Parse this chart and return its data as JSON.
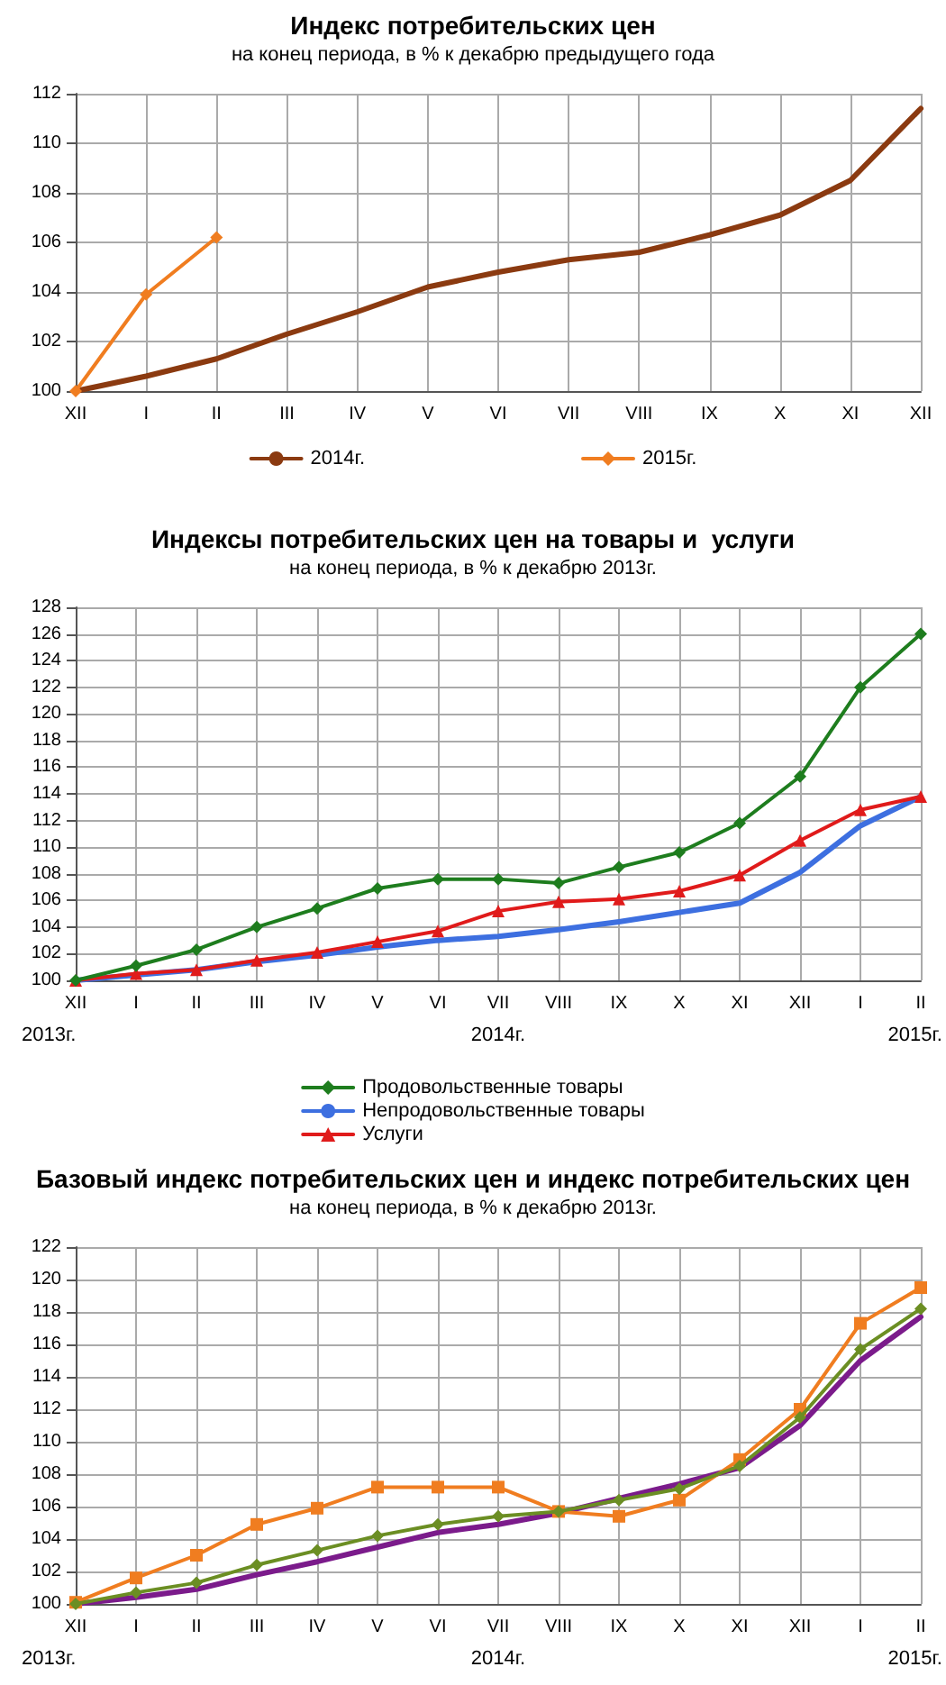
{
  "chart_data": [
    {
      "type": "line",
      "title": "Индекс потребительских цен",
      "subtitle": "на конец периода, в % к декабрю предыдущего года",
      "categories": [
        "XII",
        "I",
        "II",
        "III",
        "IV",
        "V",
        "VI",
        "VII",
        "VIII",
        "IX",
        "X",
        "XI",
        "XII"
      ],
      "series": [
        {
          "name": "2014г.",
          "color": "#8b3a10",
          "marker": "none",
          "values": [
            100,
            100.6,
            101.3,
            102.3,
            103.2,
            104.2,
            104.8,
            105.3,
            105.6,
            106.3,
            107.1,
            108.5,
            111.4
          ]
        },
        {
          "name": "2015г.",
          "color": "#f07d20",
          "marker": "diamond",
          "values": [
            100,
            103.9,
            106.2,
            null,
            null,
            null,
            null,
            null,
            null,
            null,
            null,
            null,
            null
          ]
        }
      ],
      "ylim": [
        100,
        112
      ],
      "yticks": [
        100,
        102,
        104,
        106,
        108,
        110,
        112
      ],
      "grid": true,
      "legend": "bottom"
    },
    {
      "type": "line",
      "title": "Индексы потребительских цен на товары и  услуги",
      "subtitle": "на конец периода, в % к декабрю 2013г.",
      "categories": [
        "XII",
        "I",
        "II",
        "III",
        "IV",
        "V",
        "VI",
        "VII",
        "VIII",
        "IX",
        "X",
        "XI",
        "XII",
        "I",
        "II"
      ],
      "series": [
        {
          "name": "Продовольственные товары",
          "color": "#1e7d1e",
          "marker": "diamond",
          "values": [
            100,
            101.1,
            102.3,
            104.0,
            105.4,
            106.9,
            107.6,
            107.6,
            107.3,
            108.5,
            109.6,
            111.8,
            115.3,
            122.0,
            126.0
          ]
        },
        {
          "name": "Непродовольственные товары",
          "color": "#3d6fe0",
          "marker": "none",
          "values": [
            100,
            100.4,
            100.8,
            101.4,
            101.9,
            102.5,
            103.0,
            103.3,
            103.8,
            104.4,
            105.1,
            105.8,
            108.1,
            111.6,
            113.8
          ]
        },
        {
          "name": "Услуги",
          "color": "#e01b1b",
          "marker": "triangle",
          "values": [
            100,
            100.5,
            100.8,
            101.5,
            102.1,
            102.9,
            103.7,
            105.2,
            105.9,
            106.1,
            106.7,
            107.9,
            110.5,
            112.8,
            113.8
          ]
        }
      ],
      "ylim": [
        100,
        128
      ],
      "yticks": [
        100,
        102,
        104,
        106,
        108,
        110,
        112,
        114,
        116,
        118,
        120,
        122,
        124,
        126,
        128
      ],
      "grid": true,
      "legend": "bottom",
      "annotations": [
        "2013г.",
        "2014г.",
        "2015г."
      ]
    },
    {
      "type": "line",
      "title": "Базовый индекс потребительских цен и индекс потребительских цен",
      "subtitle": "на конец периода, в % к декабрю 2013г.",
      "categories": [
        "XII",
        "I",
        "II",
        "III",
        "IV",
        "V",
        "VI",
        "VII",
        "VIII",
        "IX",
        "X",
        "XI",
        "XII",
        "I",
        "II"
      ],
      "series": [
        {
          "color": "#7b1b8b",
          "marker": "none",
          "values": [
            100,
            100.4,
            100.9,
            101.8,
            102.6,
            103.5,
            104.4,
            104.9,
            105.6,
            106.5,
            107.4,
            108.4,
            111.0,
            115.0,
            117.7
          ]
        },
        {
          "color": "#6b8e23",
          "marker": "diamond",
          "values": [
            100,
            100.7,
            101.3,
            102.4,
            103.3,
            104.2,
            104.9,
            105.4,
            105.7,
            106.4,
            107.1,
            108.5,
            111.5,
            115.7,
            118.2
          ]
        },
        {
          "color": "#f07d20",
          "marker": "square",
          "values": [
            100.1,
            101.6,
            103.0,
            104.9,
            105.9,
            107.2,
            107.2,
            107.2,
            105.7,
            105.4,
            106.4,
            108.9,
            112.0,
            117.3,
            119.5
          ]
        }
      ],
      "ylim": [
        100,
        122
      ],
      "yticks": [
        100,
        102,
        104,
        106,
        108,
        110,
        112,
        114,
        116,
        118,
        120,
        122
      ],
      "grid": true,
      "annotations": [
        "2013г.",
        "2014г.",
        "2015г."
      ]
    }
  ]
}
